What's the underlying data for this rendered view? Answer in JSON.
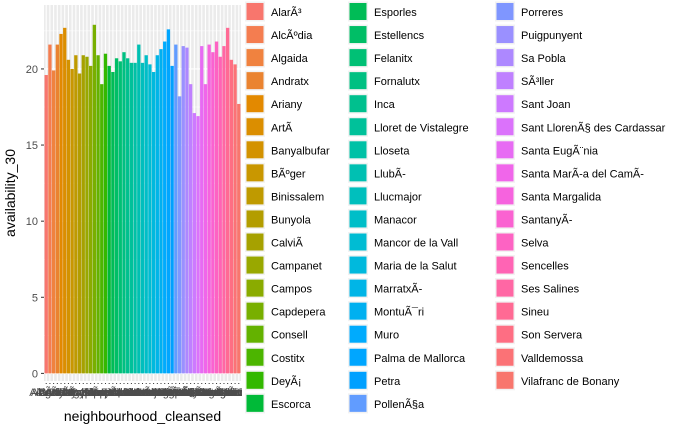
{
  "chart_data": {
    "type": "bar",
    "xlabel": "neighbourhood_cleansed",
    "ylabel": "availability_30",
    "ylim": [
      -0.5,
      24.2
    ],
    "yticks": [
      0,
      5,
      10,
      15,
      20
    ],
    "grid": true,
    "legend_position": "right",
    "x_tick_labels_note": "overlapping, unreadable",
    "categories": [
      "AlarÃ³",
      "AlcÃºdia",
      "Algaida",
      "Andratx",
      "Ariany",
      "ArtÃ",
      "Banyalbufar",
      "BÃºger",
      "Binissalem",
      "Bunyola",
      "CalviÃ",
      "Campanet",
      "Campos",
      "Capdepera",
      "Consell",
      "Costitx",
      "DeyÃ¡",
      "Escorca",
      "Esporles",
      "Estellencs",
      "Felanitx",
      "Fornalutx",
      "Inca",
      "Lloret de Vistalegre",
      "Lloseta",
      "LlubÃ-",
      "Llucmajor",
      "Manacor",
      "Mancor de la Vall",
      "Maria de la Salut",
      "MarratxÃ-",
      "MontuÃ¯ri",
      "Muro",
      "Palma de Mallorca",
      "Petra",
      "PollenÃ§a",
      "Porreres",
      "Puigpunyent",
      "Sa Pobla",
      "SÃ³ller",
      "Sant Joan",
      "Sant LlorenÃ§ des Cardassar",
      "Santa EugÃ¨nia",
      "Santa MarÃ-a del CamÃ-",
      "Santa Margalida",
      "SantanyÃ-",
      "Selva",
      "Sencelles",
      "Ses Salines",
      "Sineu",
      "Son Servera",
      "Valldemossa",
      "Vilafranc de Bonany"
    ],
    "values": [
      19.6,
      21.6,
      19.9,
      21.6,
      22.3,
      22.7,
      20.6,
      20.0,
      20.9,
      19.7,
      20.9,
      20.8,
      20.2,
      22.9,
      20.9,
      19.0,
      21.0,
      20.2,
      19.8,
      20.7,
      20.5,
      21.1,
      20.7,
      20.4,
      20.4,
      21.6,
      20.4,
      20.9,
      20.3,
      19.8,
      20.9,
      21.3,
      21.8,
      22.6,
      20.2,
      21.6,
      18.2,
      21.5,
      21.4,
      19.0,
      17.1,
      16.9,
      21.5,
      19.0,
      21.6,
      21.1,
      21.8,
      20.8,
      21.5,
      22.7,
      20.6,
      20.3,
      17.7
    ],
    "colors": [
      "#F8766D",
      "#F47D50",
      "#F0823F",
      "#EA8330",
      "#E38900",
      "#DB8E00",
      "#D39200",
      "#C99700",
      "#BF9A00",
      "#B39D00",
      "#A6A100",
      "#99A800",
      "#8AAB00",
      "#78AF00",
      "#64B200",
      "#4CB500",
      "#33B800",
      "#00BA38",
      "#00BC56",
      "#00BE66",
      "#00C075",
      "#00C082",
      "#00C08E",
      "#00C19A",
      "#00C1A6",
      "#00C0B2",
      "#00BFBD",
      "#00BEC8",
      "#00BCD3",
      "#00B9DD",
      "#00B5E7",
      "#00B0F0",
      "#00ABFD",
      "#00A6FF",
      "#00A0FF",
      "#619CFF",
      "#7F96FF",
      "#9A90FF",
      "#AD88FF",
      "#BF80FF",
      "#CD79FF",
      "#DB72FB",
      "#E76BF3",
      "#F066EA",
      "#F663DE",
      "#FA62D1",
      "#FD63C3",
      "#FF64B4",
      "#FF67A4",
      "#FF6A94",
      "#FE6E83",
      "#FB7276",
      "#F8766D"
    ]
  }
}
